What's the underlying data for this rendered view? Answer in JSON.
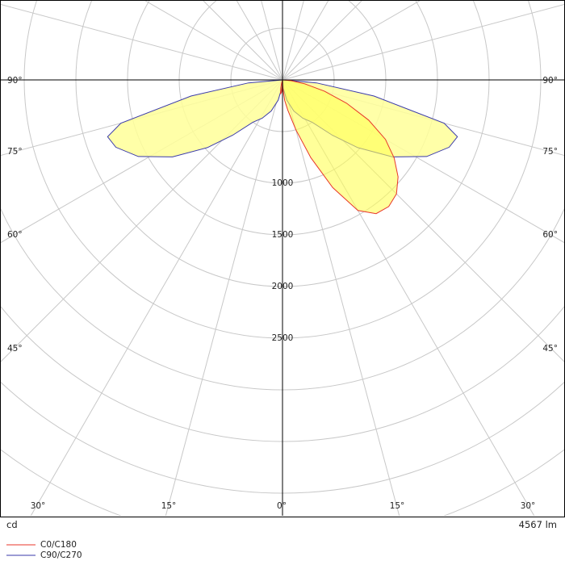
{
  "chart_data": {
    "type": "polar",
    "unit_label": "cd",
    "flux_label": "4567 lm",
    "radial_tick_labels": [
      "1000",
      "1500",
      "2000",
      "2500"
    ],
    "radial_ticks": [
      1000,
      1500,
      2000,
      2500
    ],
    "radial_max": 4500,
    "angle_tick_labels_left": [
      "90°",
      "75°",
      "60°",
      "45°",
      "30°",
      "15°",
      "0°"
    ],
    "angle_tick_labels_right": [
      "90°",
      "75°",
      "60°",
      "45°",
      "30°",
      "15°"
    ],
    "angle_ticks": [
      90,
      75,
      60,
      45,
      30,
      15,
      0
    ],
    "colors": {
      "grid": "#c8c8c8",
      "axis": "#000000",
      "c0_line": "#e8352a",
      "c0_fill": "#ffff55",
      "c90_line": "#3a3aaa",
      "c90_fill": "#ffff99"
    },
    "series": [
      {
        "name": "C0/C180",
        "profile": [
          {
            "angle": -90,
            "cd": 0
          },
          {
            "angle": -75,
            "cd": 0
          },
          {
            "angle": -15,
            "cd": 40
          },
          {
            "angle": -12,
            "cd": 80
          },
          {
            "angle": -8,
            "cd": 140
          },
          {
            "angle": -5,
            "cd": 120
          },
          {
            "angle": -2,
            "cd": 60
          },
          {
            "angle": 0,
            "cd": 0
          },
          {
            "angle": 2,
            "cd": 80
          },
          {
            "angle": 6,
            "cd": 200
          },
          {
            "angle": 10,
            "cd": 300
          },
          {
            "angle": 15,
            "cd": 500
          },
          {
            "angle": 20,
            "cd": 800
          },
          {
            "angle": 25,
            "cd": 1150
          },
          {
            "angle": 30,
            "cd": 1460
          },
          {
            "angle": 35,
            "cd": 1580
          },
          {
            "angle": 40,
            "cd": 1600
          },
          {
            "angle": 45,
            "cd": 1560
          },
          {
            "angle": 50,
            "cd": 1460
          },
          {
            "angle": 55,
            "cd": 1320
          },
          {
            "angle": 60,
            "cd": 1150
          },
          {
            "angle": 65,
            "cd": 920
          },
          {
            "angle": 70,
            "cd": 660
          },
          {
            "angle": 75,
            "cd": 420
          },
          {
            "angle": 80,
            "cd": 220
          },
          {
            "angle": 85,
            "cd": 80
          },
          {
            "angle": 90,
            "cd": 0
          }
        ]
      },
      {
        "name": "C90/C270",
        "profile": [
          {
            "angle": -90,
            "cd": 0
          },
          {
            "angle": -85,
            "cd": 330
          },
          {
            "angle": -80,
            "cd": 900
          },
          {
            "angle": -75,
            "cd": 1620
          },
          {
            "angle": -72,
            "cd": 1780
          },
          {
            "angle": -68,
            "cd": 1740
          },
          {
            "angle": -62,
            "cd": 1580
          },
          {
            "angle": -55,
            "cd": 1300
          },
          {
            "angle": -48,
            "cd": 980
          },
          {
            "angle": -42,
            "cd": 720
          },
          {
            "angle": -35,
            "cd": 500
          },
          {
            "angle": -28,
            "cd": 420
          },
          {
            "angle": -20,
            "cd": 320
          },
          {
            "angle": -12,
            "cd": 200
          },
          {
            "angle": -5,
            "cd": 80
          },
          {
            "angle": 0,
            "cd": 0
          },
          {
            "angle": 5,
            "cd": 80
          },
          {
            "angle": 12,
            "cd": 200
          },
          {
            "angle": 20,
            "cd": 320
          },
          {
            "angle": 28,
            "cd": 420
          },
          {
            "angle": 35,
            "cd": 500
          },
          {
            "angle": 42,
            "cd": 720
          },
          {
            "angle": 48,
            "cd": 980
          },
          {
            "angle": 55,
            "cd": 1300
          },
          {
            "angle": 62,
            "cd": 1580
          },
          {
            "angle": 68,
            "cd": 1740
          },
          {
            "angle": 72,
            "cd": 1780
          },
          {
            "angle": 75,
            "cd": 1620
          },
          {
            "angle": 80,
            "cd": 900
          },
          {
            "angle": 85,
            "cd": 330
          },
          {
            "angle": 90,
            "cd": 0
          }
        ]
      }
    ]
  }
}
